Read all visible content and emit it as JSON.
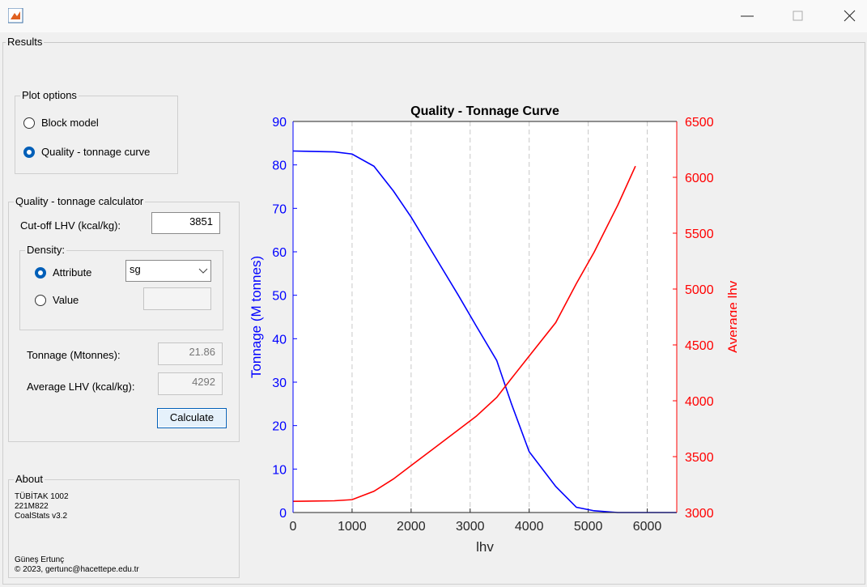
{
  "window": {
    "tab": "Results"
  },
  "plot_options": {
    "title": "Plot options",
    "options": [
      "Block model",
      "Quality - tonnage curve"
    ]
  },
  "calculator": {
    "title": "Quality - tonnage calculator",
    "cutoff_label": "Cut-off LHV (kcal/kg):",
    "cutoff_value": "3851",
    "density": {
      "title": "Density:",
      "attribute_label": "Attribute",
      "attribute_value": "sg",
      "value_label": "Value"
    },
    "tonnage_label": "Tonnage (Mtonnes):",
    "tonnage_value": "21.86",
    "avg_label": "Average LHV (kcal/kg):",
    "avg_value": "4292",
    "button": "Calculate"
  },
  "about": {
    "title": "About",
    "lines": [
      "TÜBİTAK 1002",
      "221M822",
      "CoalStats v3.2",
      "Güneş Ertunç",
      "© 2023, gertunc@hacettepe.edu.tr"
    ]
  },
  "chart_data": {
    "type": "line",
    "title": "Quality - Tonnage Curve",
    "xlabel": "lhv",
    "ylabel": "Tonnage (M tonnes)",
    "y2label": "Average lhv",
    "x": [
      0,
      700,
      1000,
      1370,
      1700,
      2000,
      2400,
      2800,
      3100,
      3450,
      3700,
      4000,
      4450,
      4800,
      5100,
      5500,
      5800,
      6500
    ],
    "series": [
      {
        "name": "Tonnage (M tonnes)",
        "color": "#0000ff",
        "values": [
          83.2,
          83,
          82.5,
          79.7,
          74,
          68,
          59,
          50,
          43,
          35,
          25,
          14,
          6,
          1.2,
          0.4,
          0,
          0,
          0
        ]
      },
      {
        "name": "Average lhv",
        "color": "#ff0000",
        "axis": "y2",
        "values": [
          3100,
          3105,
          3115,
          3190,
          3300,
          3420,
          3580,
          3740,
          3860,
          4030,
          4200,
          4400,
          4700,
          5050,
          5330,
          5750,
          6100,
          null
        ]
      }
    ],
    "xlim": [
      0,
      6500
    ],
    "xticks": [
      0,
      1000,
      2000,
      3000,
      4000,
      5000,
      6000
    ],
    "ylim": [
      0,
      90
    ],
    "yticks": [
      0,
      10,
      20,
      30,
      40,
      50,
      60,
      70,
      80,
      90
    ],
    "y2lim": [
      3000,
      6500
    ],
    "y2ticks": [
      3000,
      3500,
      4000,
      4500,
      5000,
      5500,
      6000,
      6500
    ],
    "xgrid": true
  }
}
